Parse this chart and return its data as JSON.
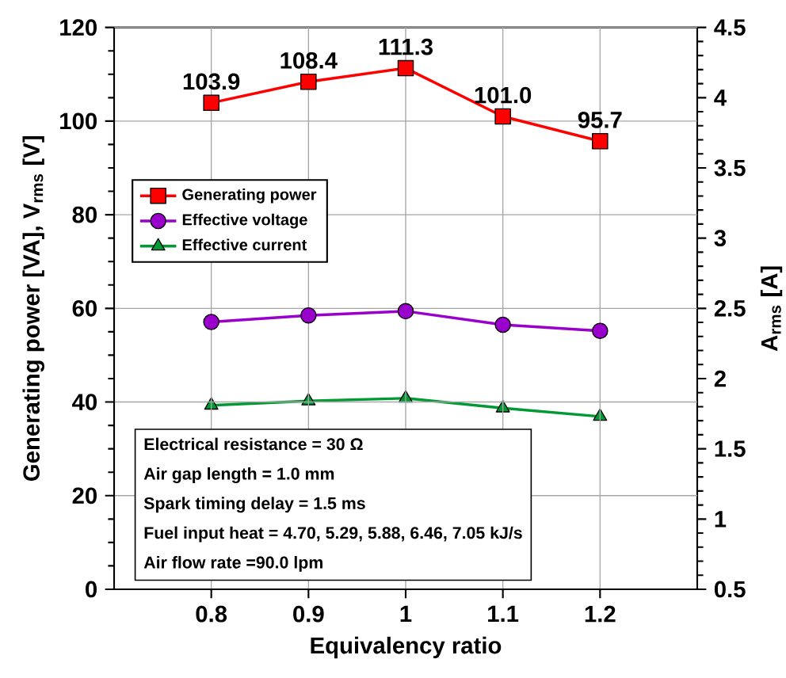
{
  "chart_data": {
    "type": "line",
    "xlabel": "Equivalency ratio",
    "ylabel": "Generating power [VA], V$_{rms}$ [V]",
    "y2label": "A$_{rms}$ [A]",
    "x": [
      0.8,
      0.9,
      1,
      1.1,
      1.2
    ],
    "xlim": [
      0.7,
      1.3
    ],
    "xticks": [
      {
        "value": 0.8,
        "label": "0.8"
      },
      {
        "value": 0.9,
        "label": "0.9"
      },
      {
        "value": 1,
        "label": "1"
      },
      {
        "value": 1.1,
        "label": "1.1"
      },
      {
        "value": 1.2,
        "label": "1.2"
      }
    ],
    "ylim": [
      0,
      120
    ],
    "yticks": [
      0,
      20,
      40,
      60,
      80,
      100,
      120
    ],
    "y2lim": [
      0.5,
      4.5
    ],
    "y2ticks": [
      {
        "value": 0.5,
        "label": "0.5"
      },
      {
        "value": 1,
        "label": "1"
      },
      {
        "value": 1.5,
        "label": "1.5"
      },
      {
        "value": 2,
        "label": "2"
      },
      {
        "value": 2.5,
        "label": "2.5"
      },
      {
        "value": 3,
        "label": "3"
      },
      {
        "value": 3.5,
        "label": "3.5"
      },
      {
        "value": 4,
        "label": "4"
      },
      {
        "value": 4.5,
        "label": "4.5"
      }
    ],
    "grid": true,
    "legend": "left",
    "line_style": "solid",
    "series": [
      {
        "name": "Generating power",
        "color": "#ff0000",
        "marker": "square",
        "values": [
          103.9,
          108.4,
          111.3,
          101.0,
          95.7
        ],
        "value_labels": [
          "103.9",
          "108.4",
          "111.3",
          "101.0",
          "95.7"
        ]
      },
      {
        "name": "Effective voltage",
        "color": "#9900cc",
        "marker": "circle",
        "values": [
          57.1,
          58.5,
          59.4,
          56.5,
          55.2
        ]
      },
      {
        "name": "Effective current",
        "color": "#009933",
        "marker": "triangle",
        "axis": "y2",
        "values": [
          1.81,
          1.84,
          1.86,
          1.79,
          1.73
        ]
      }
    ],
    "annotations": [
      "Electrical resistance = 30 Ω",
      "Air gap length = 1.0 mm",
      "Spark timing delay = 1.5 ms",
      "Fuel input heat = 4.70, 5.29, 5.88, 6.46, 7.05 kJ/s",
      "Air flow rate =90.0 lpm"
    ]
  }
}
